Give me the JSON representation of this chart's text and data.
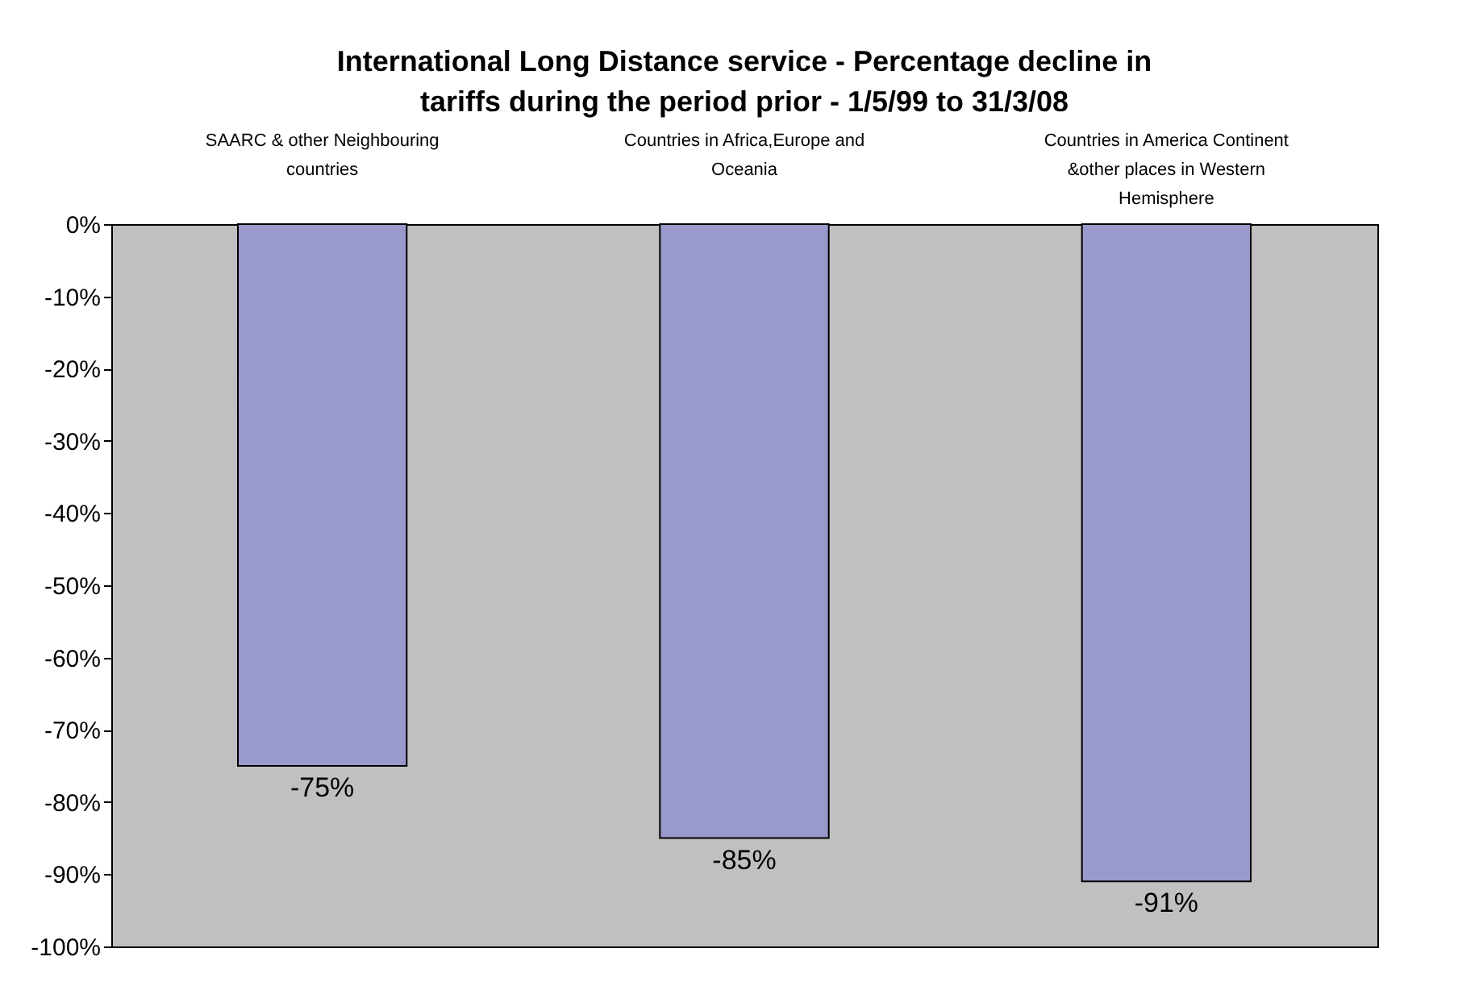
{
  "chart_data": {
    "type": "bar",
    "title": "International Long Distance service - Percentage decline in tariffs during the period prior - 1/5/99 to 31/3/08",
    "categories": [
      "SAARC & other Neighbouring countries",
      "Countries in Africa,Europe and Oceania",
      "Countries in America Continent &other places in Western Hemisphere"
    ],
    "values": [
      -75,
      -85,
      -91
    ],
    "color": "#9999cc",
    "ylim": [
      -100,
      0
    ],
    "yticks": [
      {
        "value": 0,
        "label": "0%"
      },
      {
        "value": -10,
        "label": "-10%"
      },
      {
        "value": -20,
        "label": "-20%"
      },
      {
        "value": -30,
        "label": "-30%"
      },
      {
        "value": -40,
        "label": "-40%"
      },
      {
        "value": -50,
        "label": "-50%"
      },
      {
        "value": -60,
        "label": "-60%"
      },
      {
        "value": -70,
        "label": "-70%"
      },
      {
        "value": -80,
        "label": "-80%"
      },
      {
        "value": -90,
        "label": "-90%"
      },
      {
        "value": -100,
        "label": "-100%"
      }
    ],
    "value_labels": [
      "-75%",
      "-85%",
      "-91%"
    ],
    "grid": false
  }
}
